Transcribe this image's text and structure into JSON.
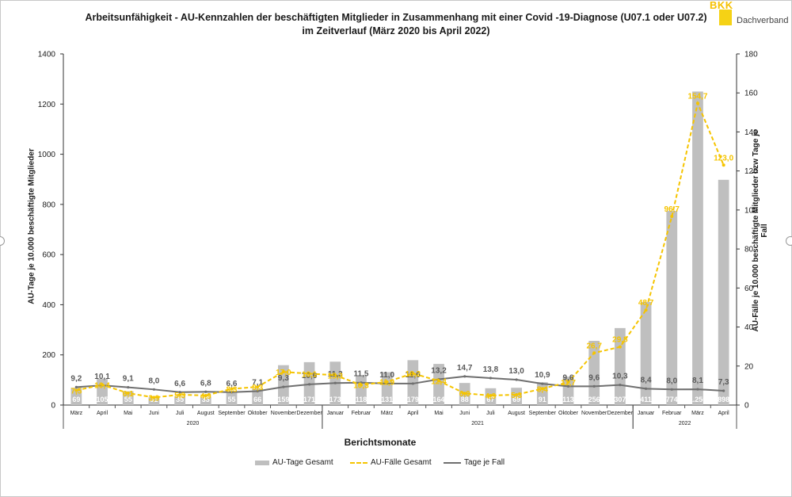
{
  "title": "Arbeitsunfähigkeit - AU-Kennzahlen der beschäftigten Mitglieder in Zusammenhang mit einer Covid -19-Diagnose (U07.1 oder U07.2) im Zeitverlauf (März 2020 bis April 2022)",
  "logo": {
    "bkk": "BKK",
    "dachverband": "Dachverband"
  },
  "colors": {
    "bar": "#bfbfbf",
    "dashed_line": "#f5c400",
    "solid_line": "#6f6f6f"
  },
  "chart_data": {
    "type": "bar",
    "title": "Arbeitsunfähigkeit - AU-Kennzahlen der beschäftigten Mitglieder in Zusammenhang mit einer Covid -19-Diagnose (U07.1 oder U07.2) im Zeitverlauf (März 2020 bis April 2022)",
    "xlabel": "Berichtsmonate",
    "ylabel_left": "AU-Tage je 10.000 beschäftigte Mitglieder",
    "ylabel_right": "AU-Fälle je 10.000 beschäftigte Mitglieder bzw Tage je Fall",
    "ylim_left": [
      0,
      1400
    ],
    "yticks_left": [
      "0",
      "200",
      "400",
      "600",
      "800",
      "1000",
      "1200",
      "1400"
    ],
    "ylim_right": [
      0,
      180
    ],
    "yticks_right": [
      "0",
      "20",
      "40",
      "60",
      "80",
      "100",
      "120",
      "140",
      "160",
      "180"
    ],
    "categories": [
      "März",
      "April",
      "Mai",
      "Juni",
      "Juli",
      "August",
      "September",
      "Oktober",
      "November",
      "Dezember",
      "Januar",
      "Februar",
      "März",
      "April",
      "Mai",
      "Juni",
      "Juli",
      "August",
      "September",
      "Oktober",
      "November",
      "Dezember",
      "Januar",
      "Februar",
      "März",
      "April"
    ],
    "years": [
      {
        "label": "2020",
        "from": 0,
        "to": 9
      },
      {
        "label": "2021",
        "from": 10,
        "to": 21
      },
      {
        "label": "2022",
        "from": 22,
        "to": 25
      }
    ],
    "series": [
      {
        "name": "AU-Tage Gesamt",
        "type": "bar",
        "axis": "left",
        "values": [
          69,
          105,
          55,
          31,
          35,
          33,
          55,
          66,
          159,
          171,
          173,
          118,
          131,
          179,
          164,
          88,
          67,
          69,
          91,
          113,
          256,
          307,
          411,
          774,
          1250,
          898
        ],
        "labels": [
          "69",
          "105",
          "55",
          "31",
          "35",
          "33",
          "55",
          "66",
          "159",
          "171",
          "173",
          "118",
          "131",
          "179",
          "164",
          "88",
          "67",
          "69",
          "91",
          "113",
          "256",
          "307",
          "411",
          "774",
          "1.250",
          "898"
        ]
      },
      {
        "name": "AU-Fälle Gesamt",
        "type": "line-dashed",
        "axis": "right",
        "values": [
          7.5,
          10.4,
          6.1,
          3.9,
          5.3,
          4.9,
          8.3,
          9.3,
          17.0,
          16.1,
          15.3,
          10.3,
          11.9,
          16.2,
          12.4,
          6.0,
          4.9,
          5.3,
          8.4,
          11.7,
          26.7,
          29.8,
          48.7,
          96.7,
          154.7,
          123.0
        ],
        "labels": [
          "7,5",
          "10,4",
          "6,1",
          "3,9",
          "5,3",
          "4,9",
          "8,3",
          "9,3",
          "17,0",
          "16,1",
          "15,3",
          "10,3",
          "11,9",
          "16,2",
          "12,4",
          "6,0",
          "4,9",
          "5,3",
          "8,4",
          "11,7",
          "26,7",
          "29,8",
          "48,7",
          "96,7",
          "154,7",
          "123,0"
        ]
      },
      {
        "name": "Tage je Fall",
        "type": "line",
        "axis": "right",
        "values": [
          9.2,
          10.1,
          9.1,
          8.0,
          6.6,
          6.8,
          6.6,
          7.1,
          9.3,
          10.6,
          11.3,
          11.5,
          11.0,
          11.0,
          13.2,
          14.7,
          13.8,
          13.0,
          10.9,
          9.6,
          9.6,
          10.3,
          8.4,
          8.0,
          8.1,
          7.3
        ],
        "labels": [
          "9,2",
          "10,1",
          "9,1",
          "8,0",
          "6,6",
          "6,8",
          "6,6",
          "7,1",
          "9,3",
          "10,6",
          "11,3",
          "11,5",
          "11,0",
          "11,0",
          "13,2",
          "14,7",
          "13,8",
          "13,0",
          "10,9",
          "9,6",
          "9,6",
          "10,3",
          "8,4",
          "8,0",
          "8,1",
          "7,3"
        ]
      }
    ],
    "legend_position": "bottom",
    "grid": false
  }
}
